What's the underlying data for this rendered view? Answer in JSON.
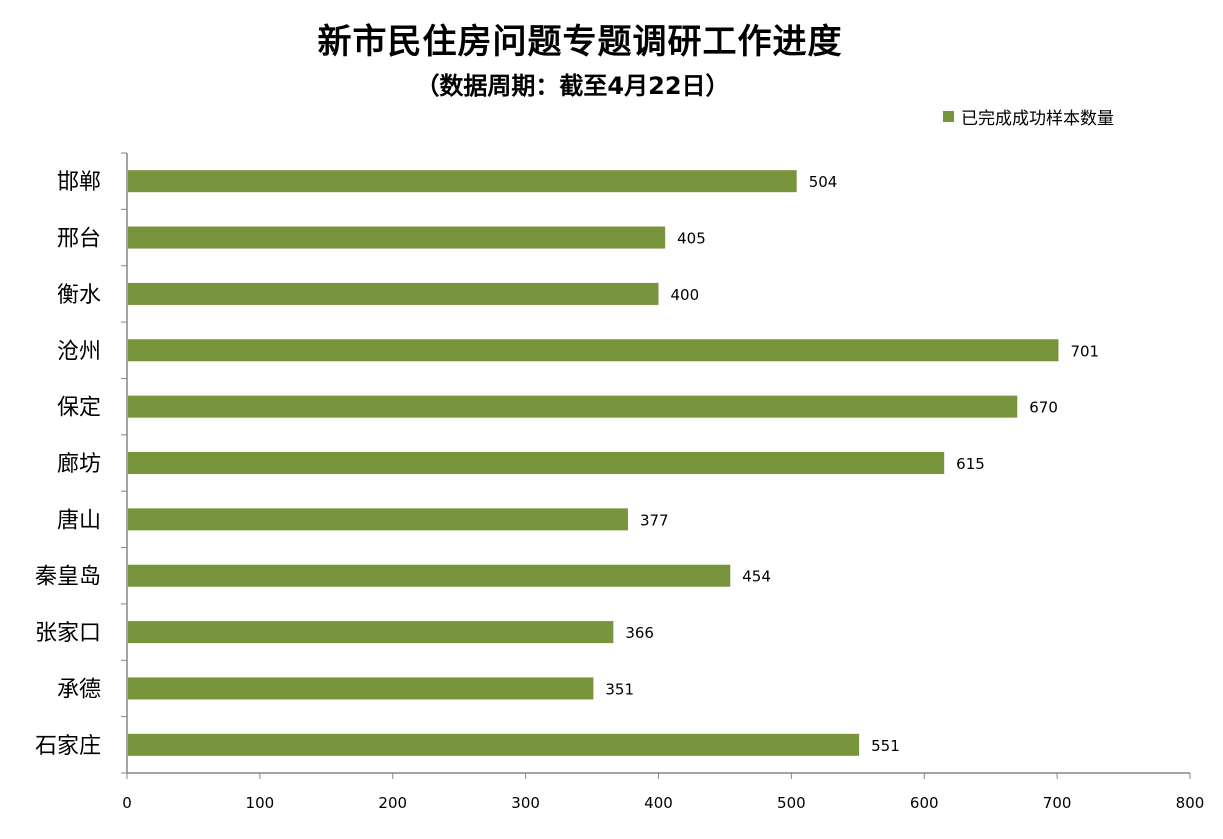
{
  "chart_data": {
    "type": "bar",
    "orientation": "horizontal",
    "title": "新市民住房问题专题调研工作进度",
    "subtitle": "（数据周期：截至4月22日）",
    "categories": [
      "邯郸",
      "邢台",
      "衡水",
      "沧州",
      "保定",
      "廊坊",
      "唐山",
      "秦皇岛",
      "张家口",
      "承德",
      "石家庄"
    ],
    "series": [
      {
        "name": "已完成成功样本数量",
        "values": [
          504,
          405,
          400,
          701,
          670,
          615,
          377,
          454,
          366,
          351,
          551
        ],
        "color": "#77933c"
      }
    ],
    "xlim": [
      0,
      800
    ],
    "xticks": [
      0,
      100,
      200,
      300,
      400,
      500,
      600,
      700,
      800
    ],
    "grid": false,
    "legend_position": "top-right",
    "data_labels": true
  }
}
